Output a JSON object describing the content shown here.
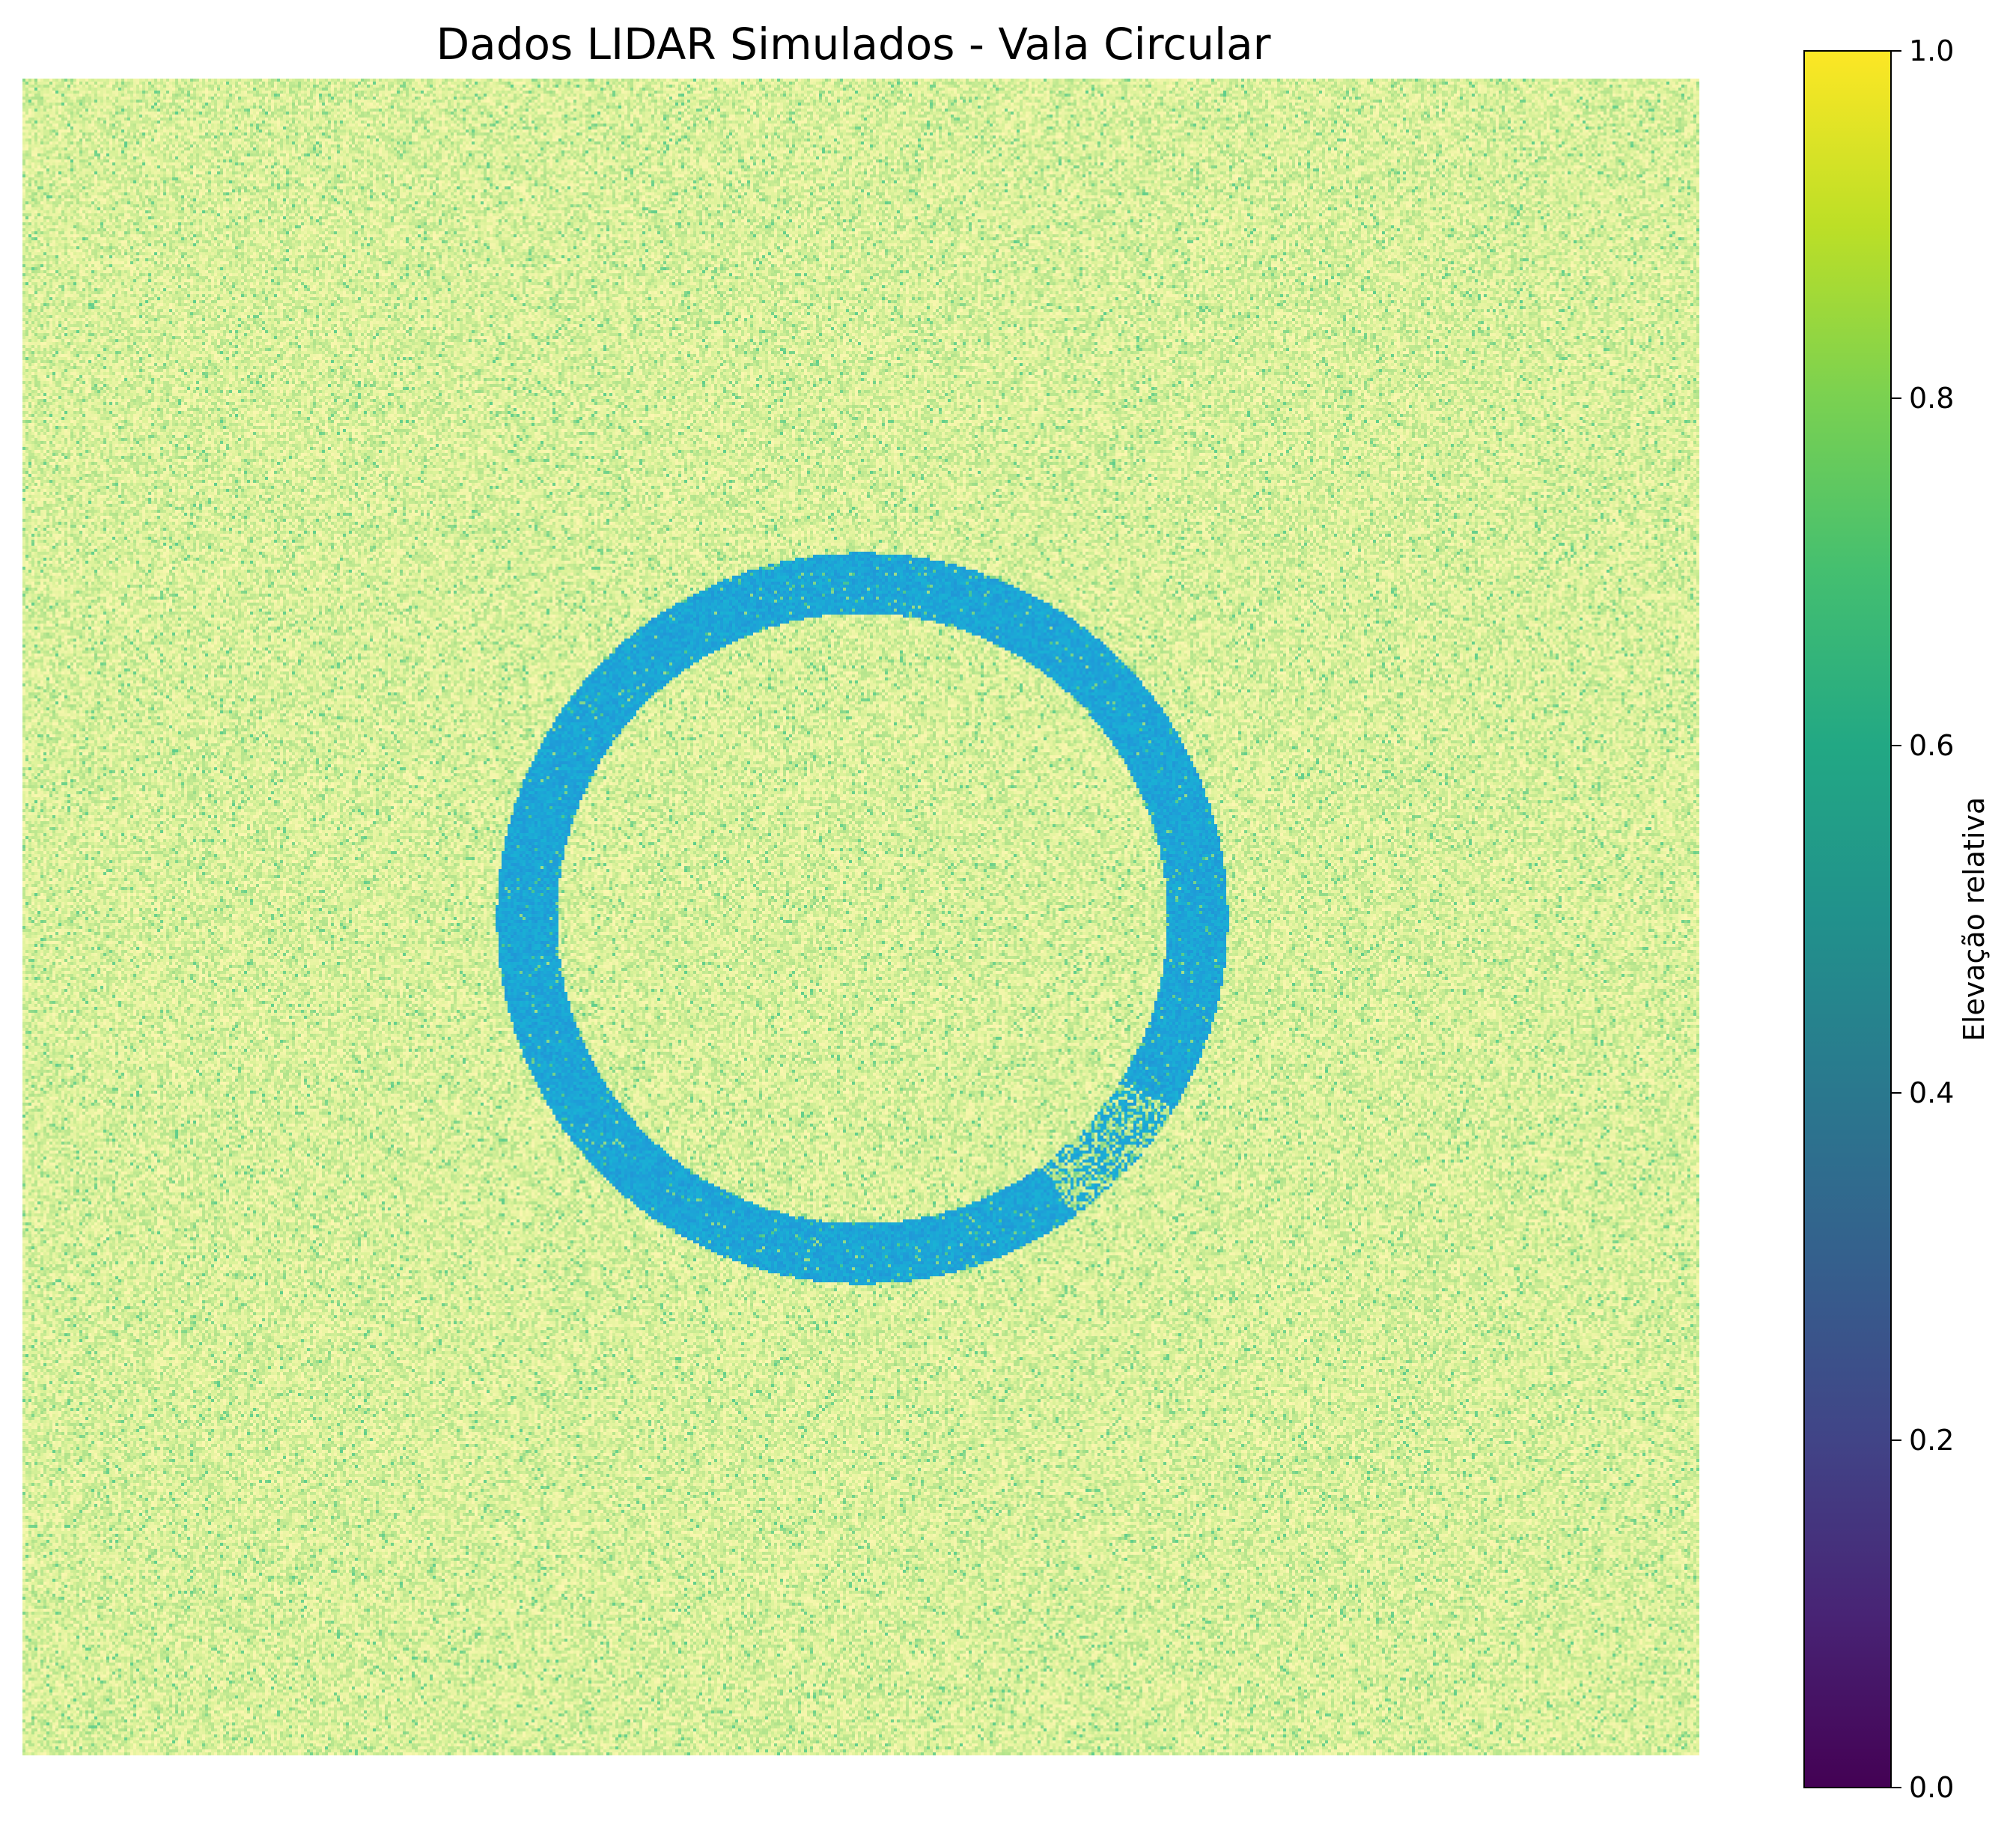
{
  "chart_data": {
    "type": "heatmap",
    "title": "Dados LIDAR Simulados - Vala Circular",
    "colormap": "viridis",
    "colorbar": {
      "label": "Elevação relativa",
      "range": [
        0.0,
        1.0
      ],
      "ticks": [
        0.0,
        0.2,
        0.4,
        0.6,
        0.8,
        1.0
      ],
      "tick_labels": [
        "0.0",
        "0.2",
        "0.4",
        "0.6",
        "0.8",
        "1.0"
      ]
    },
    "axes_visible": false,
    "grid": false,
    "field": {
      "background_range": [
        0.6,
        0.95
      ],
      "ditch_range": [
        0.1,
        0.35
      ],
      "feature": "circular ditch",
      "ring_center": [
        0.5,
        0.5
      ],
      "ring_radius": 0.2,
      "ring_width": 0.018,
      "noisy_segment": "lower-right"
    }
  },
  "palette": {
    "field_yellow": "#f5f5a0",
    "field_green": "#a8e088",
    "ditch_blue": "#1f9bd8",
    "ditch_deep": "#2e6fc0"
  }
}
